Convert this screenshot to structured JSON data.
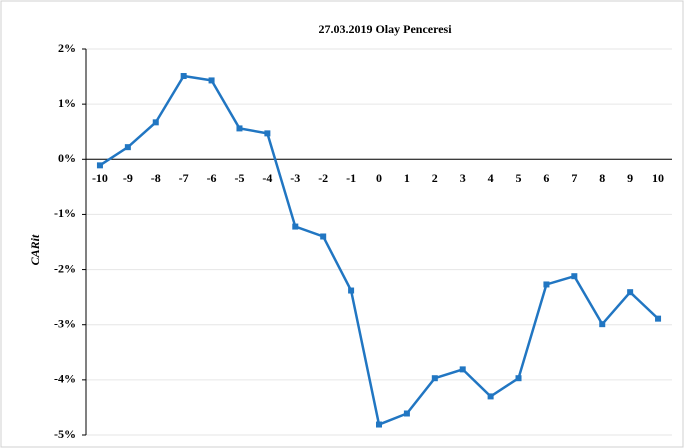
{
  "chart_data": {
    "type": "line",
    "title": "27.03.2019 Olay Penceresi",
    "ylabel": "CARit",
    "categories": [
      -10,
      -9,
      -8,
      -7,
      -6,
      -5,
      -4,
      -3,
      -2,
      -1,
      0,
      1,
      2,
      3,
      4,
      5,
      6,
      7,
      8,
      9,
      10
    ],
    "series": [
      {
        "name": "CARit",
        "color": "#2176c2",
        "values": [
          -0.11,
          0.22,
          0.67,
          1.51,
          1.43,
          0.56,
          0.47,
          -1.22,
          -1.4,
          -2.38,
          -4.81,
          -4.61,
          -3.97,
          -3.81,
          -4.3,
          -3.97,
          -2.27,
          -2.12,
          -2.99,
          -2.41,
          -2.89
        ]
      }
    ],
    "ylim": [
      -5,
      2
    ],
    "yticks": [
      {
        "value": -5,
        "label": "-5%"
      },
      {
        "value": -4,
        "label": "-4%"
      },
      {
        "value": -3,
        "label": "-3%"
      },
      {
        "value": -2,
        "label": "-2%"
      },
      {
        "value": -1,
        "label": "-1%"
      },
      {
        "value": 0,
        "label": "0%"
      },
      {
        "value": 1,
        "label": "1%"
      },
      {
        "value": 2,
        "label": "2%"
      }
    ],
    "grid": true
  }
}
